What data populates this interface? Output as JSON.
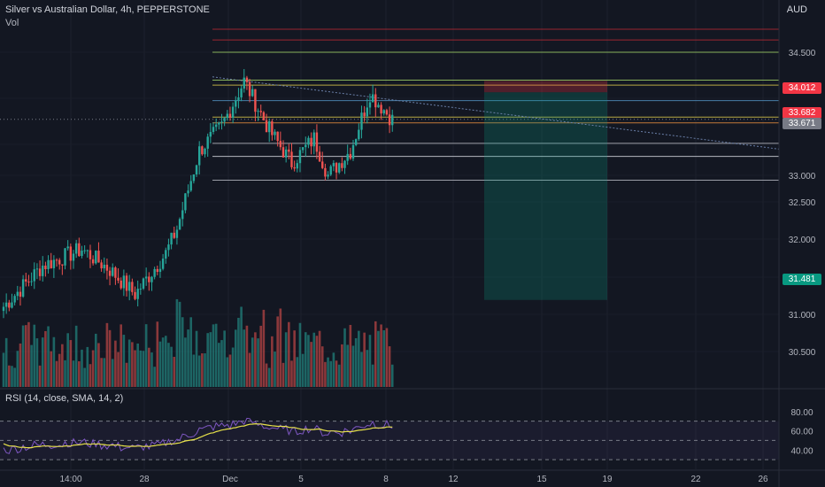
{
  "header": {
    "title": "Silver vs Australian Dollar, 4h, PEPPERSTONE",
    "volume_label": "Vol",
    "currency": "AUD"
  },
  "rsi": {
    "label": "RSI (14, close, SMA, 14, 2)",
    "y_ticks": [
      "80.00",
      "60.00",
      "40.00"
    ]
  },
  "price_axis": {
    "ticks": [
      "34.500",
      "33.000",
      "32.500",
      "32.000",
      "31.000",
      "30.500"
    ],
    "tags": {
      "entry": "34.012",
      "last_red": "33.682",
      "last_gray": "33.671",
      "target": "31.481"
    }
  },
  "time_axis": {
    "labels": [
      "14:00",
      "28",
      "Dec",
      "5",
      "8",
      "12",
      "15",
      "19",
      "22",
      "26"
    ]
  },
  "colors": {
    "background": "#131722",
    "up": "#26a69a",
    "down": "#ef5350",
    "rsi_line": "#7e57c2",
    "rsi_sma": "#e6e04a",
    "stop_zone": "#f23645",
    "target_zone": "#089981"
  },
  "chart_data": {
    "type": "candlestick",
    "timeframe": "4h",
    "price_range": [
      30.2,
      34.9
    ],
    "horizontal_levels": [
      34.78,
      34.65,
      34.5,
      34.16,
      34.1,
      33.91,
      33.71,
      33.64,
      33.39,
      33.23,
      32.94
    ],
    "trendline": {
      "start": 34.2,
      "end": 33.32
    },
    "short_position": {
      "entry": 34.012,
      "stop": 34.15,
      "target": 31.481
    },
    "last_price": 33.682,
    "rsi_range": [
      20,
      100
    ],
    "rsi_levels": [
      70,
      50,
      30
    ]
  }
}
